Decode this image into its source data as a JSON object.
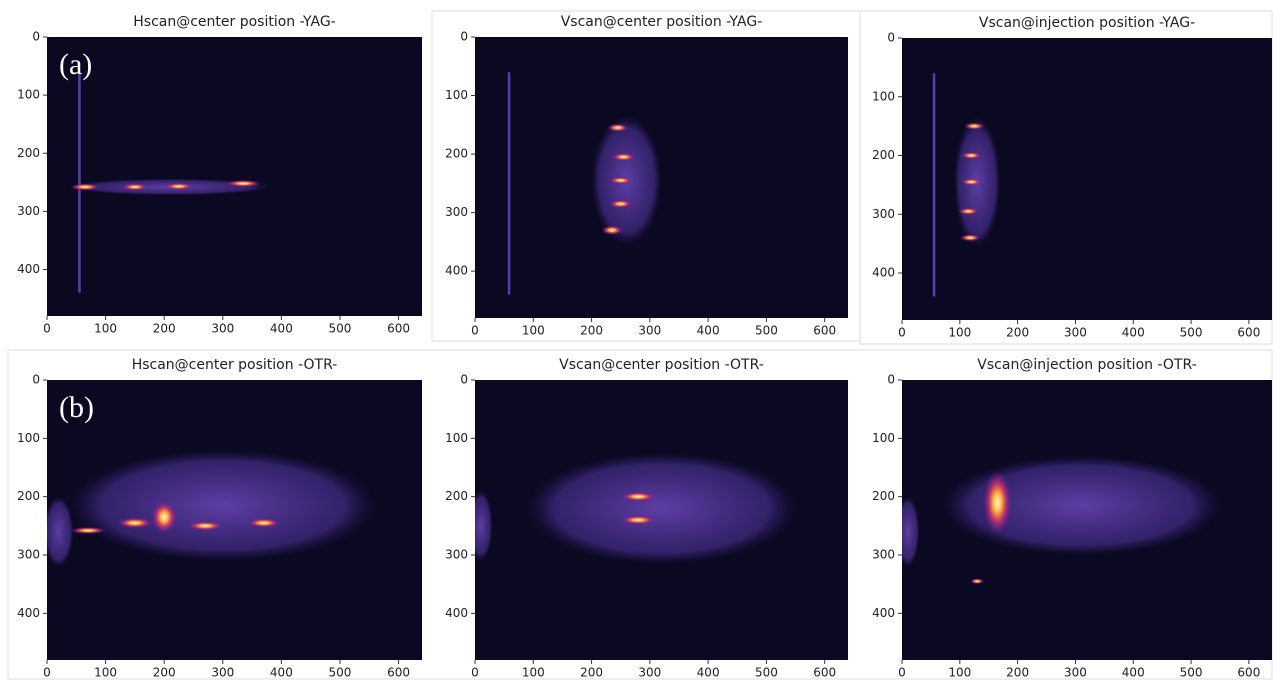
{
  "panels": [
    {
      "title": "Hscan@center position -YAG-",
      "label": "(a)"
    },
    {
      "title": "Vscan@center position -YAG-"
    },
    {
      "title": "Vscan@injection position -YAG-"
    },
    {
      "title": "Hscan@center position -OTR-",
      "label": "(b)"
    },
    {
      "title": "Vscan@center position -OTR-"
    },
    {
      "title": "Vscan@injection position -OTR-"
    }
  ],
  "xticks": [
    0,
    100,
    200,
    300,
    400,
    500,
    600
  ],
  "yticks": [
    0,
    100,
    200,
    300,
    400
  ]
}
